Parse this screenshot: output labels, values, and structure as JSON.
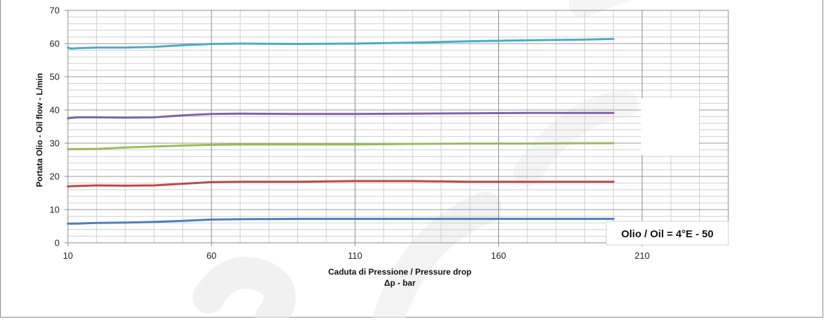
{
  "chart_data": {
    "type": "line",
    "xlabel": "Caduta di Pressione / Pressure drop",
    "xlabel_line2": "Δp - bar",
    "ylabel": "Portata Olio - Oil flow - L/min",
    "xlim": [
      10,
      240
    ],
    "ylim": [
      0,
      70
    ],
    "x_ticks": [
      10,
      60,
      110,
      160,
      210
    ],
    "y_ticks": [
      0,
      10,
      20,
      30,
      40,
      50,
      60,
      70
    ],
    "grid": true,
    "annotation": "Olio / Oil = 4°E - 50",
    "series": [
      {
        "color": "#4a7fc1",
        "x": [
          10,
          13,
          20,
          30,
          40,
          50,
          60,
          70,
          90,
          110,
          130,
          150,
          170,
          190,
          200
        ],
        "values": [
          5.8,
          5.8,
          6.0,
          6.1,
          6.3,
          6.6,
          7.0,
          7.1,
          7.2,
          7.2,
          7.2,
          7.2,
          7.2,
          7.2,
          7.2
        ]
      },
      {
        "color": "#b94a48",
        "x": [
          10,
          13,
          20,
          30,
          40,
          50,
          60,
          70,
          90,
          110,
          130,
          150,
          170,
          190,
          200
        ],
        "values": [
          17.0,
          17.1,
          17.3,
          17.2,
          17.3,
          17.8,
          18.3,
          18.4,
          18.4,
          18.6,
          18.6,
          18.4,
          18.4,
          18.4,
          18.4
        ]
      },
      {
        "color": "#9bbb59",
        "x": [
          10,
          13,
          20,
          30,
          40,
          50,
          60,
          70,
          90,
          110,
          130,
          150,
          170,
          190,
          200
        ],
        "values": [
          28.2,
          28.2,
          28.3,
          28.7,
          29.0,
          29.3,
          29.5,
          29.6,
          29.6,
          29.6,
          29.8,
          29.9,
          29.9,
          30.0,
          30.0
        ]
      },
      {
        "color": "#8064a2",
        "x": [
          10,
          13,
          20,
          30,
          40,
          50,
          60,
          70,
          90,
          110,
          130,
          150,
          170,
          190,
          200
        ],
        "values": [
          37.5,
          37.8,
          37.8,
          37.7,
          37.8,
          38.4,
          38.8,
          38.9,
          38.8,
          38.8,
          38.9,
          39.0,
          39.1,
          39.1,
          39.1
        ]
      },
      {
        "color": "#4bacc6",
        "x": [
          10,
          11,
          13,
          20,
          30,
          40,
          50,
          60,
          70,
          90,
          110,
          130,
          150,
          170,
          190,
          200
        ],
        "values": [
          58.8,
          58.5,
          58.6,
          58.8,
          58.8,
          59.0,
          59.5,
          59.9,
          60.0,
          59.9,
          60.0,
          60.3,
          60.7,
          61.0,
          61.2,
          61.4
        ]
      }
    ]
  }
}
